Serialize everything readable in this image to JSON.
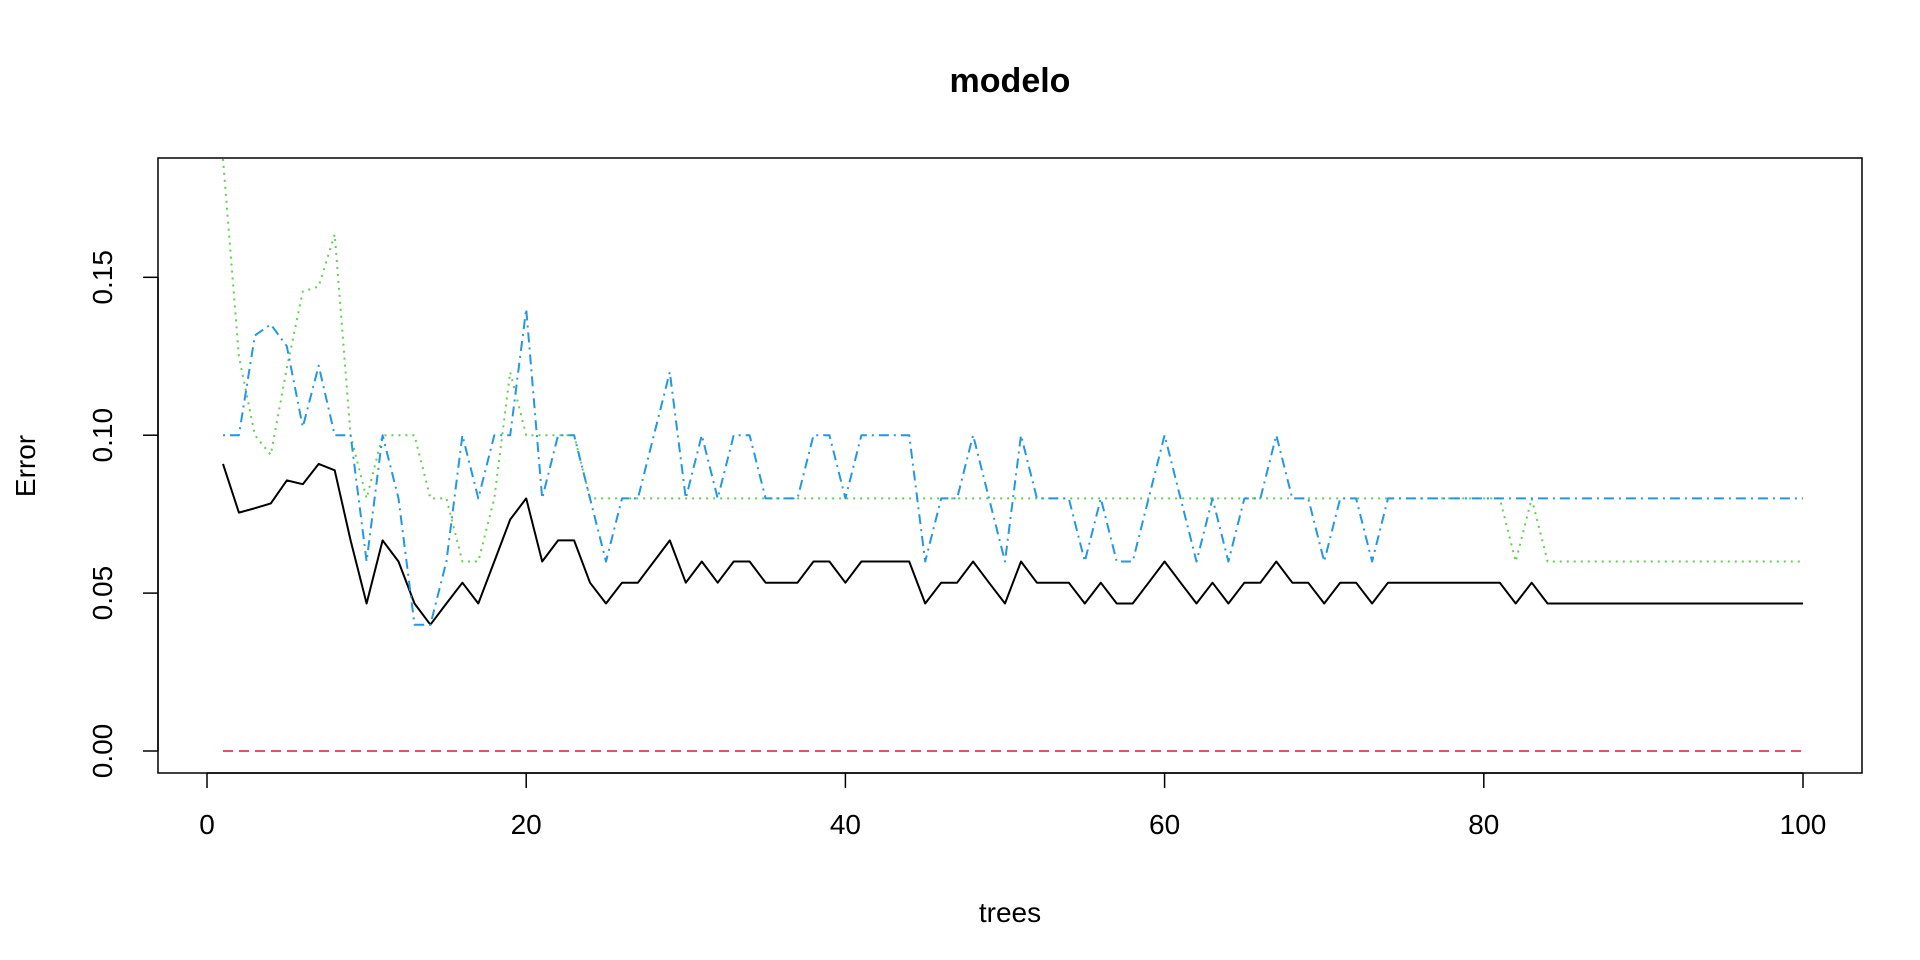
{
  "chart_data": {
    "type": "line",
    "title": "modelo",
    "xlabel": "trees",
    "ylabel": "Error",
    "xlim": [
      0,
      100
    ],
    "ylim": [
      0,
      0.19
    ],
    "x_ticks": [
      0,
      20,
      40,
      60,
      80,
      100
    ],
    "x_tick_labels": [
      "0",
      "20",
      "40",
      "60",
      "80",
      "100"
    ],
    "y_ticks": [
      0,
      0.05,
      0.1,
      0.15
    ],
    "y_tick_labels": [
      "0.00",
      "0.05",
      "0.10",
      "0.15"
    ],
    "grid": false,
    "legend": "none",
    "series": [
      {
        "color": "#000000",
        "dash": "solid",
        "values": [
          0.0909,
          0.0755,
          0.0769,
          0.0784,
          0.0857,
          0.0845,
          0.0909,
          0.0889,
          0.0667,
          0.0467,
          0.0667,
          0.06,
          0.0467,
          0.04,
          0.0467,
          0.0533,
          0.0467,
          0.06,
          0.0733,
          0.08,
          0.06,
          0.0667,
          0.0667,
          0.0533,
          0.0467,
          0.0533,
          0.0533,
          0.06,
          0.0667,
          0.0533,
          0.06,
          0.0533,
          0.06,
          0.06,
          0.0533,
          0.0533,
          0.0533,
          0.06,
          0.06,
          0.0533,
          0.06,
          0.06,
          0.06,
          0.06,
          0.0467,
          0.0533,
          0.0533,
          0.06,
          0.0533,
          0.0467,
          0.06,
          0.0533,
          0.0533,
          0.0533,
          0.0467,
          0.0533,
          0.0467,
          0.0467,
          0.0533,
          0.06,
          0.0533,
          0.0467,
          0.0533,
          0.0467,
          0.0533,
          0.0533,
          0.06,
          0.0533,
          0.0533,
          0.0467,
          0.0533,
          0.0533,
          0.0467,
          0.0533,
          0.0533,
          0.0533,
          0.0533,
          0.0533,
          0.0533,
          0.0533,
          0.0533,
          0.0467,
          0.0533,
          0.0467,
          0.0467,
          0.0467,
          0.0467,
          0.0467,
          0.0467,
          0.0467,
          0.0467,
          0.0467,
          0.0467,
          0.0467,
          0.0467,
          0.0467,
          0.0467,
          0.0467,
          0.0467,
          0.0467
        ]
      },
      {
        "color": "#DF536B",
        "dash": "dashed",
        "values": [
          0,
          0,
          0,
          0,
          0,
          0,
          0,
          0,
          0,
          0,
          0,
          0,
          0,
          0,
          0,
          0,
          0,
          0,
          0,
          0,
          0,
          0,
          0,
          0,
          0,
          0,
          0,
          0,
          0,
          0,
          0,
          0,
          0,
          0,
          0,
          0,
          0,
          0,
          0,
          0,
          0,
          0,
          0,
          0,
          0,
          0,
          0,
          0,
          0,
          0,
          0,
          0,
          0,
          0,
          0,
          0,
          0,
          0,
          0,
          0,
          0,
          0,
          0,
          0,
          0,
          0,
          0,
          0,
          0,
          0,
          0,
          0,
          0,
          0,
          0,
          0,
          0,
          0,
          0,
          0,
          0,
          0,
          0,
          0,
          0,
          0,
          0,
          0,
          0,
          0,
          0,
          0,
          0,
          0,
          0,
          0,
          0,
          0,
          0,
          0
        ]
      },
      {
        "color": "#61D04F",
        "dash": "dotted",
        "values": [
          0.1875,
          0.125,
          0.1,
          0.0938,
          0.1212,
          0.1455,
          0.1471,
          0.1636,
          0.1,
          0.08,
          0.1,
          0.1,
          0.1,
          0.08,
          0.08,
          0.06,
          0.06,
          0.08,
          0.12,
          0.1,
          0.1,
          0.1,
          0.1,
          0.08,
          0.08,
          0.08,
          0.08,
          0.08,
          0.08,
          0.08,
          0.08,
          0.08,
          0.08,
          0.08,
          0.08,
          0.08,
          0.08,
          0.08,
          0.08,
          0.08,
          0.08,
          0.08,
          0.08,
          0.08,
          0.08,
          0.08,
          0.08,
          0.08,
          0.08,
          0.08,
          0.08,
          0.08,
          0.08,
          0.08,
          0.08,
          0.08,
          0.08,
          0.08,
          0.08,
          0.08,
          0.08,
          0.08,
          0.08,
          0.08,
          0.08,
          0.08,
          0.08,
          0.08,
          0.08,
          0.08,
          0.08,
          0.08,
          0.08,
          0.08,
          0.08,
          0.08,
          0.08,
          0.08,
          0.08,
          0.08,
          0.08,
          0.06,
          0.08,
          0.06,
          0.06,
          0.06,
          0.06,
          0.06,
          0.06,
          0.06,
          0.06,
          0.06,
          0.06,
          0.06,
          0.06,
          0.06,
          0.06,
          0.06,
          0.06,
          0.06
        ]
      },
      {
        "color": "#2297E6",
        "dash": "dotdash",
        "values": [
          0.1,
          0.1,
          0.1316,
          0.1351,
          0.1282,
          0.1026,
          0.122,
          0.1,
          0.1,
          0.06,
          0.1,
          0.08,
          0.04,
          0.04,
          0.06,
          0.1,
          0.08,
          0.1,
          0.1,
          0.14,
          0.08,
          0.1,
          0.1,
          0.08,
          0.06,
          0.08,
          0.08,
          0.1,
          0.12,
          0.08,
          0.1,
          0.08,
          0.1,
          0.1,
          0.08,
          0.08,
          0.08,
          0.1,
          0.1,
          0.08,
          0.1,
          0.1,
          0.1,
          0.1,
          0.06,
          0.08,
          0.08,
          0.1,
          0.08,
          0.06,
          0.1,
          0.08,
          0.08,
          0.08,
          0.06,
          0.08,
          0.06,
          0.06,
          0.08,
          0.1,
          0.08,
          0.06,
          0.08,
          0.06,
          0.08,
          0.08,
          0.1,
          0.08,
          0.08,
          0.06,
          0.08,
          0.08,
          0.06,
          0.08,
          0.08,
          0.08,
          0.08,
          0.08,
          0.08,
          0.08,
          0.08,
          0.08,
          0.08,
          0.08,
          0.08,
          0.08,
          0.08,
          0.08,
          0.08,
          0.08,
          0.08,
          0.08,
          0.08,
          0.08,
          0.08,
          0.08,
          0.08,
          0.08,
          0.08,
          0.08
        ]
      }
    ]
  }
}
